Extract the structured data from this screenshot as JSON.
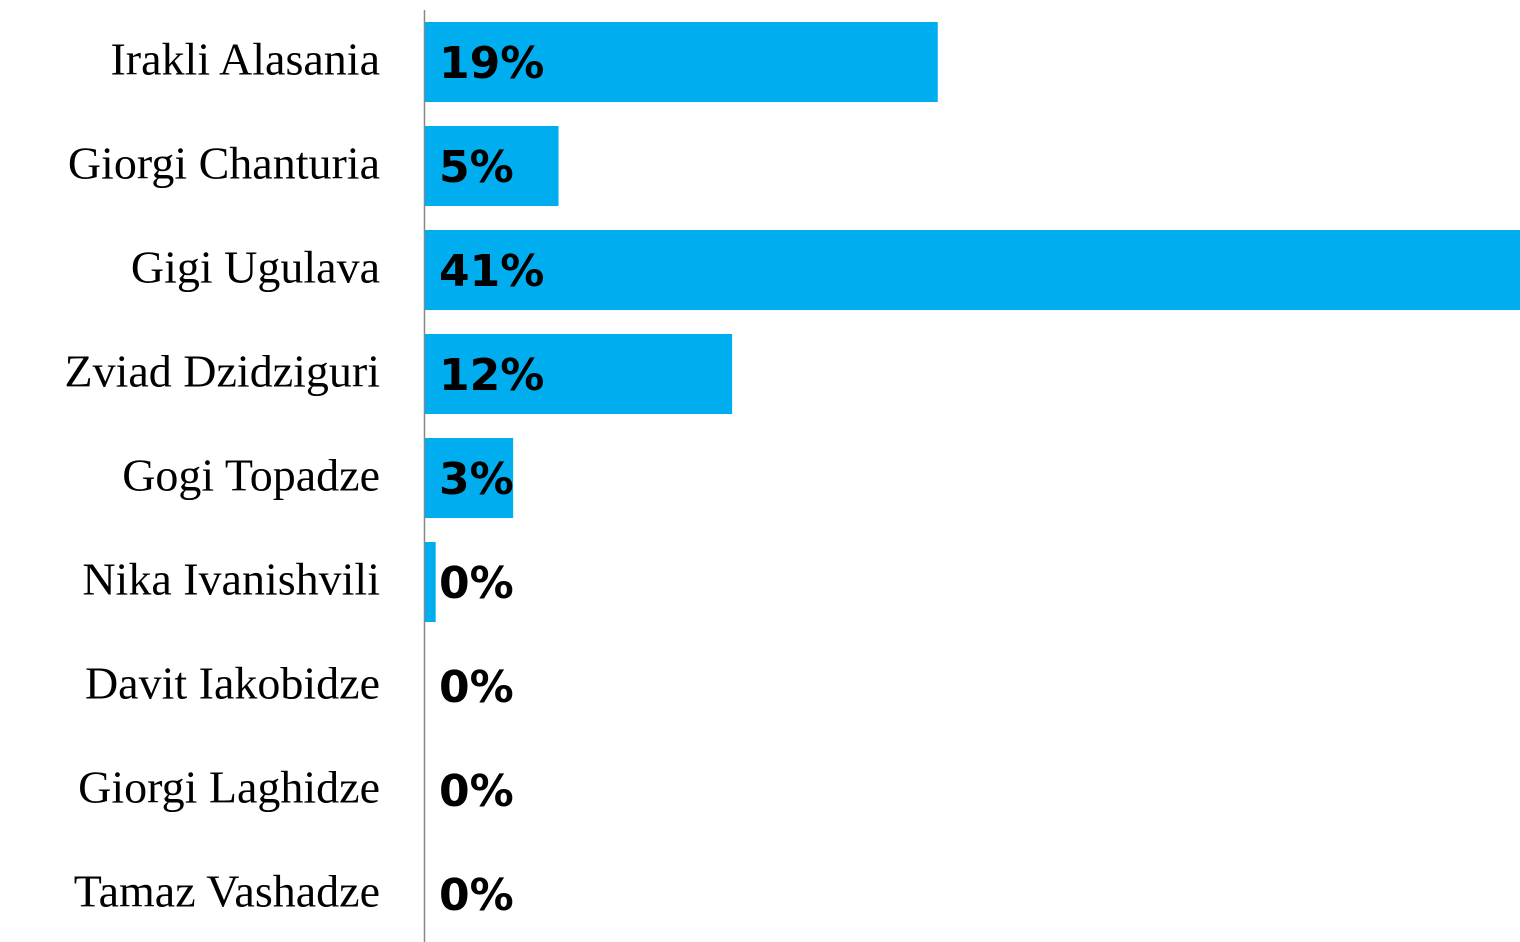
{
  "chart_data": {
    "type": "bar",
    "orientation": "horizontal",
    "categories": [
      "Irakli Alasania",
      "Giorgi Chanturia",
      "Gigi Ugulava",
      "Zviad Dzidziguri",
      "Gogi Topadze",
      "Nika Ivanishvili",
      "Davit Iakobidze",
      "Giorgi Laghidze",
      "Tamaz Vashadze"
    ],
    "values": [
      19.2,
      5,
      41,
      11.5,
      3.3,
      0.4,
      0,
      0,
      0
    ],
    "value_labels": [
      "19%",
      "5%",
      "41%",
      "12%",
      "3%",
      "0%",
      "0%",
      "0%",
      "0%"
    ],
    "color": "#00aeef",
    "xlim": [
      0,
      41
    ]
  }
}
